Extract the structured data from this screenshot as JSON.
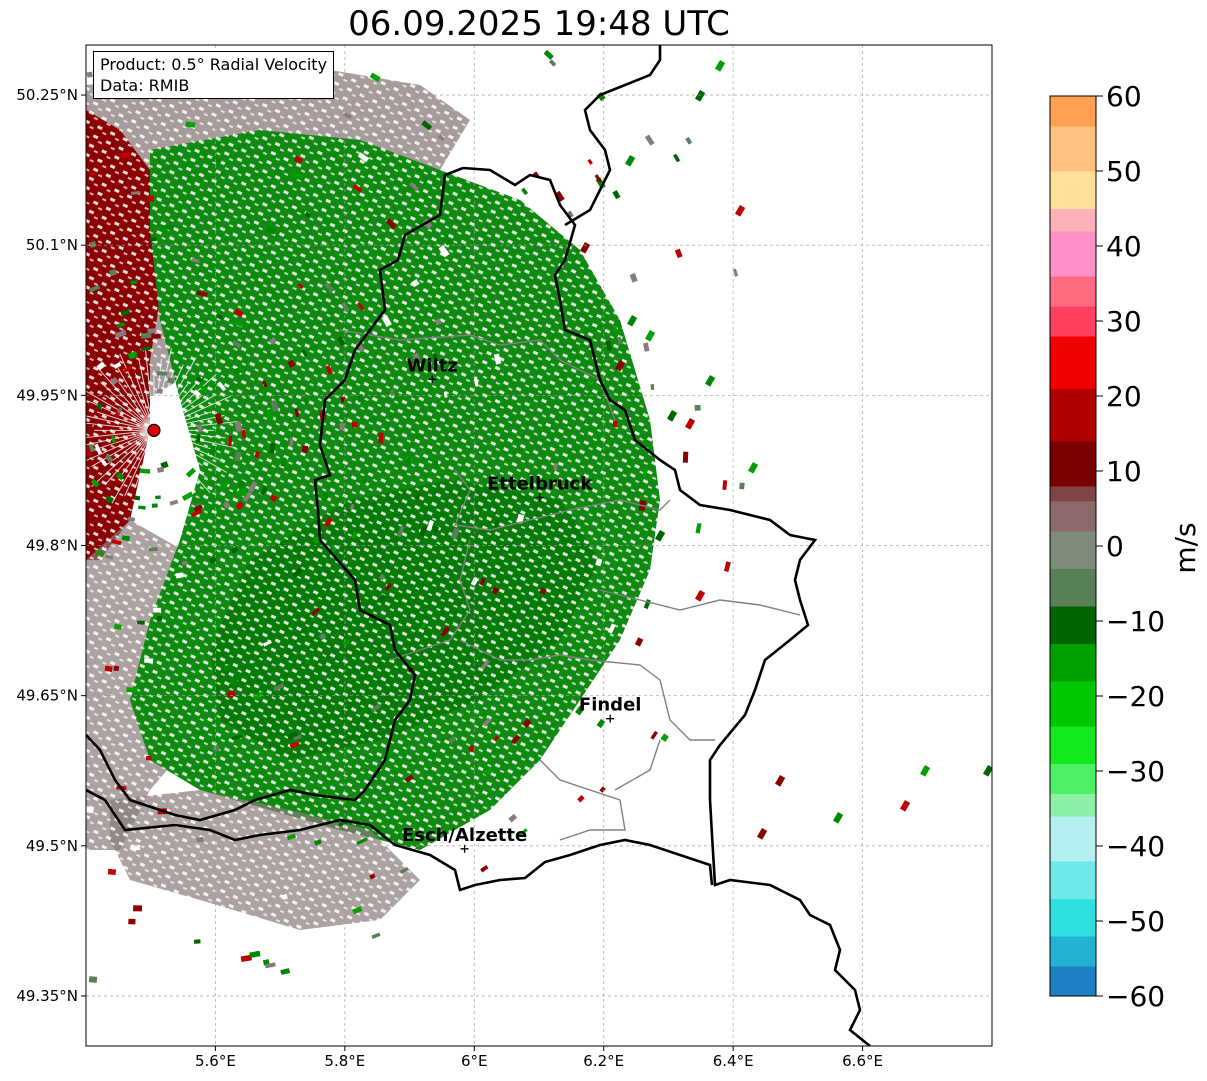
{
  "title": "06.09.2025 19:48 UTC",
  "info": {
    "product": "Product: 0.5° Radial Velocity",
    "data": "Data: RMIB"
  },
  "map": {
    "lon_range": [
      5.4,
      6.8
    ],
    "lat_range": [
      49.3,
      50.3
    ],
    "lon_ticks": [
      {
        "value": 5.6,
        "label": "5.6°E"
      },
      {
        "value": 5.8,
        "label": "5.8°E"
      },
      {
        "value": 6.0,
        "label": "6°E"
      },
      {
        "value": 6.2,
        "label": "6.2°E"
      },
      {
        "value": 6.4,
        "label": "6.4°E"
      },
      {
        "value": 6.6,
        "label": "6.6°E"
      }
    ],
    "lat_ticks": [
      {
        "value": 49.35,
        "label": "49.35°N"
      },
      {
        "value": 49.5,
        "label": "49.5°N"
      },
      {
        "value": 49.65,
        "label": "49.65°N"
      },
      {
        "value": 49.8,
        "label": "49.8°N"
      },
      {
        "value": 49.95,
        "label": "49.95°N"
      },
      {
        "value": 50.1,
        "label": "50.1°N"
      },
      {
        "value": 50.25,
        "label": "50.25°N"
      }
    ],
    "radar_site": {
      "lon": 5.505,
      "lat": 49.915
    },
    "cities": [
      {
        "name": "Wiltz",
        "lon": 5.935,
        "lat": 49.966
      },
      {
        "name": "Ettelbruck",
        "lon": 6.101,
        "lat": 49.848
      },
      {
        "name": "Findel",
        "lon": 6.21,
        "lat": 49.627
      },
      {
        "name": "Esch/Alzette",
        "lon": 5.985,
        "lat": 49.497
      }
    ],
    "colors": {
      "outbound": "#8b0000",
      "near_zero": "#8a7a7a",
      "inbound": "#008800",
      "border": "#000000",
      "canton_border": "#808080"
    }
  },
  "colorbar": {
    "label": "m/s",
    "min": -60,
    "max": 60,
    "ticks": [
      {
        "value": 60,
        "label": "60"
      },
      {
        "value": 50,
        "label": "50"
      },
      {
        "value": 40,
        "label": "40"
      },
      {
        "value": 30,
        "label": "30"
      },
      {
        "value": 20,
        "label": "20"
      },
      {
        "value": 10,
        "label": "10"
      },
      {
        "value": 0,
        "label": "0"
      },
      {
        "value": -10,
        "label": "−10"
      },
      {
        "value": -20,
        "label": "−20"
      },
      {
        "value": -30,
        "label": "−30"
      },
      {
        "value": -40,
        "label": "−40"
      },
      {
        "value": -50,
        "label": "−50"
      },
      {
        "value": -60,
        "label": "−60"
      }
    ],
    "stops": [
      {
        "from": -60,
        "to": -56,
        "color": "#1f7fc4"
      },
      {
        "from": -56,
        "to": -52,
        "color": "#22b3d4"
      },
      {
        "from": -52,
        "to": -47,
        "color": "#2ee0e0"
      },
      {
        "from": -47,
        "to": -42,
        "color": "#6ee8e8"
      },
      {
        "from": -42,
        "to": -36,
        "color": "#b4f0f0"
      },
      {
        "from": -36,
        "to": -33,
        "color": "#8cf0a8"
      },
      {
        "from": -33,
        "to": -29,
        "color": "#4cf064"
      },
      {
        "from": -29,
        "to": -24,
        "color": "#12e81e"
      },
      {
        "from": -24,
        "to": -18,
        "color": "#00c800"
      },
      {
        "from": -18,
        "to": -13,
        "color": "#00a000"
      },
      {
        "from": -13,
        "to": -8,
        "color": "#006400"
      },
      {
        "from": -8,
        "to": -3,
        "color": "#5a805a"
      },
      {
        "from": -3,
        "to": 2,
        "color": "#7e8a7a"
      },
      {
        "from": 2,
        "to": 6,
        "color": "#8a6a6a"
      },
      {
        "from": 6,
        "to": 8,
        "color": "#804444"
      },
      {
        "from": 8,
        "to": 14,
        "color": "#7a0000"
      },
      {
        "from": 14,
        "to": 21,
        "color": "#b00000"
      },
      {
        "from": 21,
        "to": 28,
        "color": "#f00000"
      },
      {
        "from": 28,
        "to": 32,
        "color": "#ff4060"
      },
      {
        "from": 32,
        "to": 36,
        "color": "#ff6a80"
      },
      {
        "from": 36,
        "to": 42,
        "color": "#ff90c8"
      },
      {
        "from": 42,
        "to": 45,
        "color": "#ffb0b8"
      },
      {
        "from": 45,
        "to": 50,
        "color": "#ffe09a"
      },
      {
        "from": 50,
        "to": 56,
        "color": "#ffc080"
      },
      {
        "from": 56,
        "to": 60,
        "color": "#ffa050"
      }
    ]
  }
}
